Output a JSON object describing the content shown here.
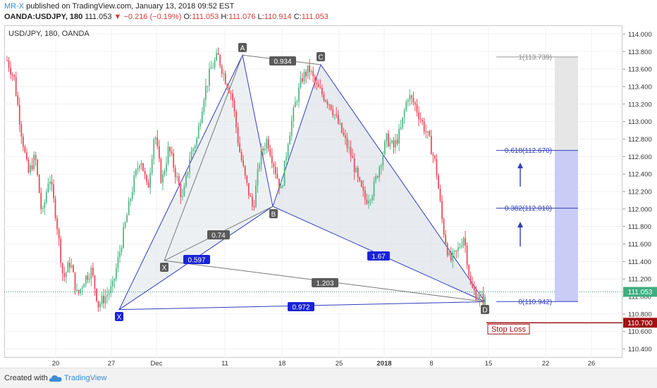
{
  "header": {
    "author": "MR-X",
    "published_text": "published on TradingView.com, January 13, 2018 09:52 EST",
    "symbol": "OANDA:USDJPY, 180",
    "last": "111.053",
    "change": "▼ −0.216 (−0.19%)",
    "o_label": "O:",
    "o_value": "111.053",
    "h_label": "H:",
    "h_value": "111.076",
    "l_label": "L:",
    "l_value": "110.914",
    "c_label": "C:",
    "c_value": "111.053"
  },
  "plot_title": "USD/JPY, 180, OANDA",
  "footer": {
    "created": "Created with",
    "brand": "TradingView"
  },
  "colors": {
    "up": "#53b987",
    "down": "#eb4d5c",
    "pattern": "#2f3fb8",
    "fill": "#dfe3ea",
    "stop": "#a01010",
    "blue_zone": "#c9ccf5",
    "grey_zone": "#e6e6e6"
  },
  "chart_data": {
    "type": "candlestick",
    "y_axis": {
      "min": 110.3,
      "max": 114.1,
      "ticks": [
        "110.400",
        "110.600",
        "110.800",
        "111.000",
        "111.200",
        "111.400",
        "111.600",
        "111.800",
        "112.000",
        "112.200",
        "112.400",
        "112.600",
        "112.800",
        "113.000",
        "113.200",
        "113.400",
        "113.600",
        "113.800",
        "114.000"
      ],
      "current_price": "111.053",
      "stop_price": "110.700"
    },
    "x_axis": {
      "ticks": [
        "20",
        "27",
        "Dec",
        "11",
        "18",
        "25",
        "2018",
        "8",
        "15",
        "22",
        "26"
      ]
    },
    "price_path": [
      113.7,
      113.5,
      112.9,
      112.4,
      112.6,
      111.9,
      112.4,
      111.9,
      111.2,
      111.4,
      111.0,
      111.2,
      111.3,
      110.9,
      111.0,
      111.1,
      111.5,
      111.9,
      112.3,
      112.6,
      112.2,
      112.9,
      112.3,
      112.7,
      112.4,
      112.1,
      112.6,
      112.8,
      113.3,
      113.6,
      113.75,
      113.5,
      113.3,
      112.7,
      112.3,
      112.0,
      112.6,
      112.8,
      112.5,
      112.2,
      112.8,
      113.2,
      113.5,
      113.6,
      113.4,
      113.3,
      113.2,
      113.0,
      112.8,
      112.6,
      112.3,
      112.1,
      112.2,
      112.5,
      112.8,
      112.7,
      112.9,
      113.3,
      113.2,
      113.0,
      112.8,
      112.5,
      111.8,
      111.4,
      111.5,
      111.7,
      111.1,
      111.0,
      110.95
    ],
    "xabcd": {
      "points": [
        {
          "label": "X",
          "price": 110.85
        },
        {
          "label": "A",
          "price": 113.76
        },
        {
          "label": "B",
          "price": 112.03
        },
        {
          "label": "C",
          "price": 113.65
        },
        {
          "label": "D",
          "price": 110.94
        }
      ],
      "extra_point": {
        "label": "X",
        "price": 111.41
      },
      "ratios": [
        "0.934",
        "0.74",
        "0.597",
        "1.67",
        "1.203",
        "0.972"
      ]
    },
    "targets": [
      {
        "label": "1(113.739)",
        "price": 113.739
      },
      {
        "label": "0.618(112.670)",
        "price": 112.67
      },
      {
        "label": "0.382(112.010)",
        "price": 112.01
      },
      {
        "label": "0(110.942)",
        "price": 110.942
      }
    ],
    "stop_loss_label": "Stop Loss"
  }
}
